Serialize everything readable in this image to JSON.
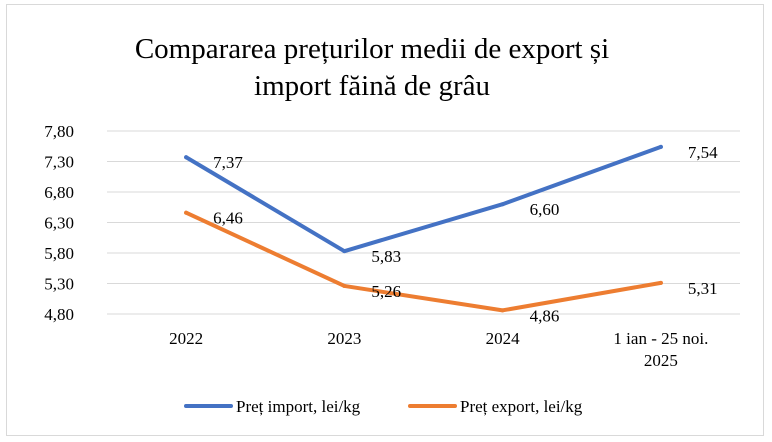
{
  "chart_data": {
    "type": "line",
    "title": [
      "Compararea prețurilor medii de export și",
      "import făină de grâu"
    ],
    "categories": [
      [
        "2022"
      ],
      [
        "2023"
      ],
      [
        "2024"
      ],
      [
        "1 ian - 25 noi.",
        "2025"
      ]
    ],
    "ylim": [
      4.8,
      7.8
    ],
    "yticks": [
      4.8,
      5.3,
      5.8,
      6.3,
      6.8,
      7.3,
      7.8
    ],
    "ytick_labels": [
      "4,80",
      "5,30",
      "5,80",
      "6,30",
      "6,80",
      "7,30",
      "7,80"
    ],
    "series": [
      {
        "name": "Preț import, lei/kg",
        "color": "#4472C4",
        "values": [
          7.37,
          5.83,
          6.6,
          7.54
        ],
        "labels": [
          "7,37",
          "5,83",
          "6,60",
          "7,54"
        ]
      },
      {
        "name": "Preț export, lei/kg",
        "color": "#ED7D31",
        "values": [
          6.46,
          5.26,
          4.86,
          5.31
        ],
        "labels": [
          "6,46",
          "5,26",
          "4,86",
          "5,31"
        ]
      }
    ],
    "grid": true,
    "legend": "bottom"
  }
}
